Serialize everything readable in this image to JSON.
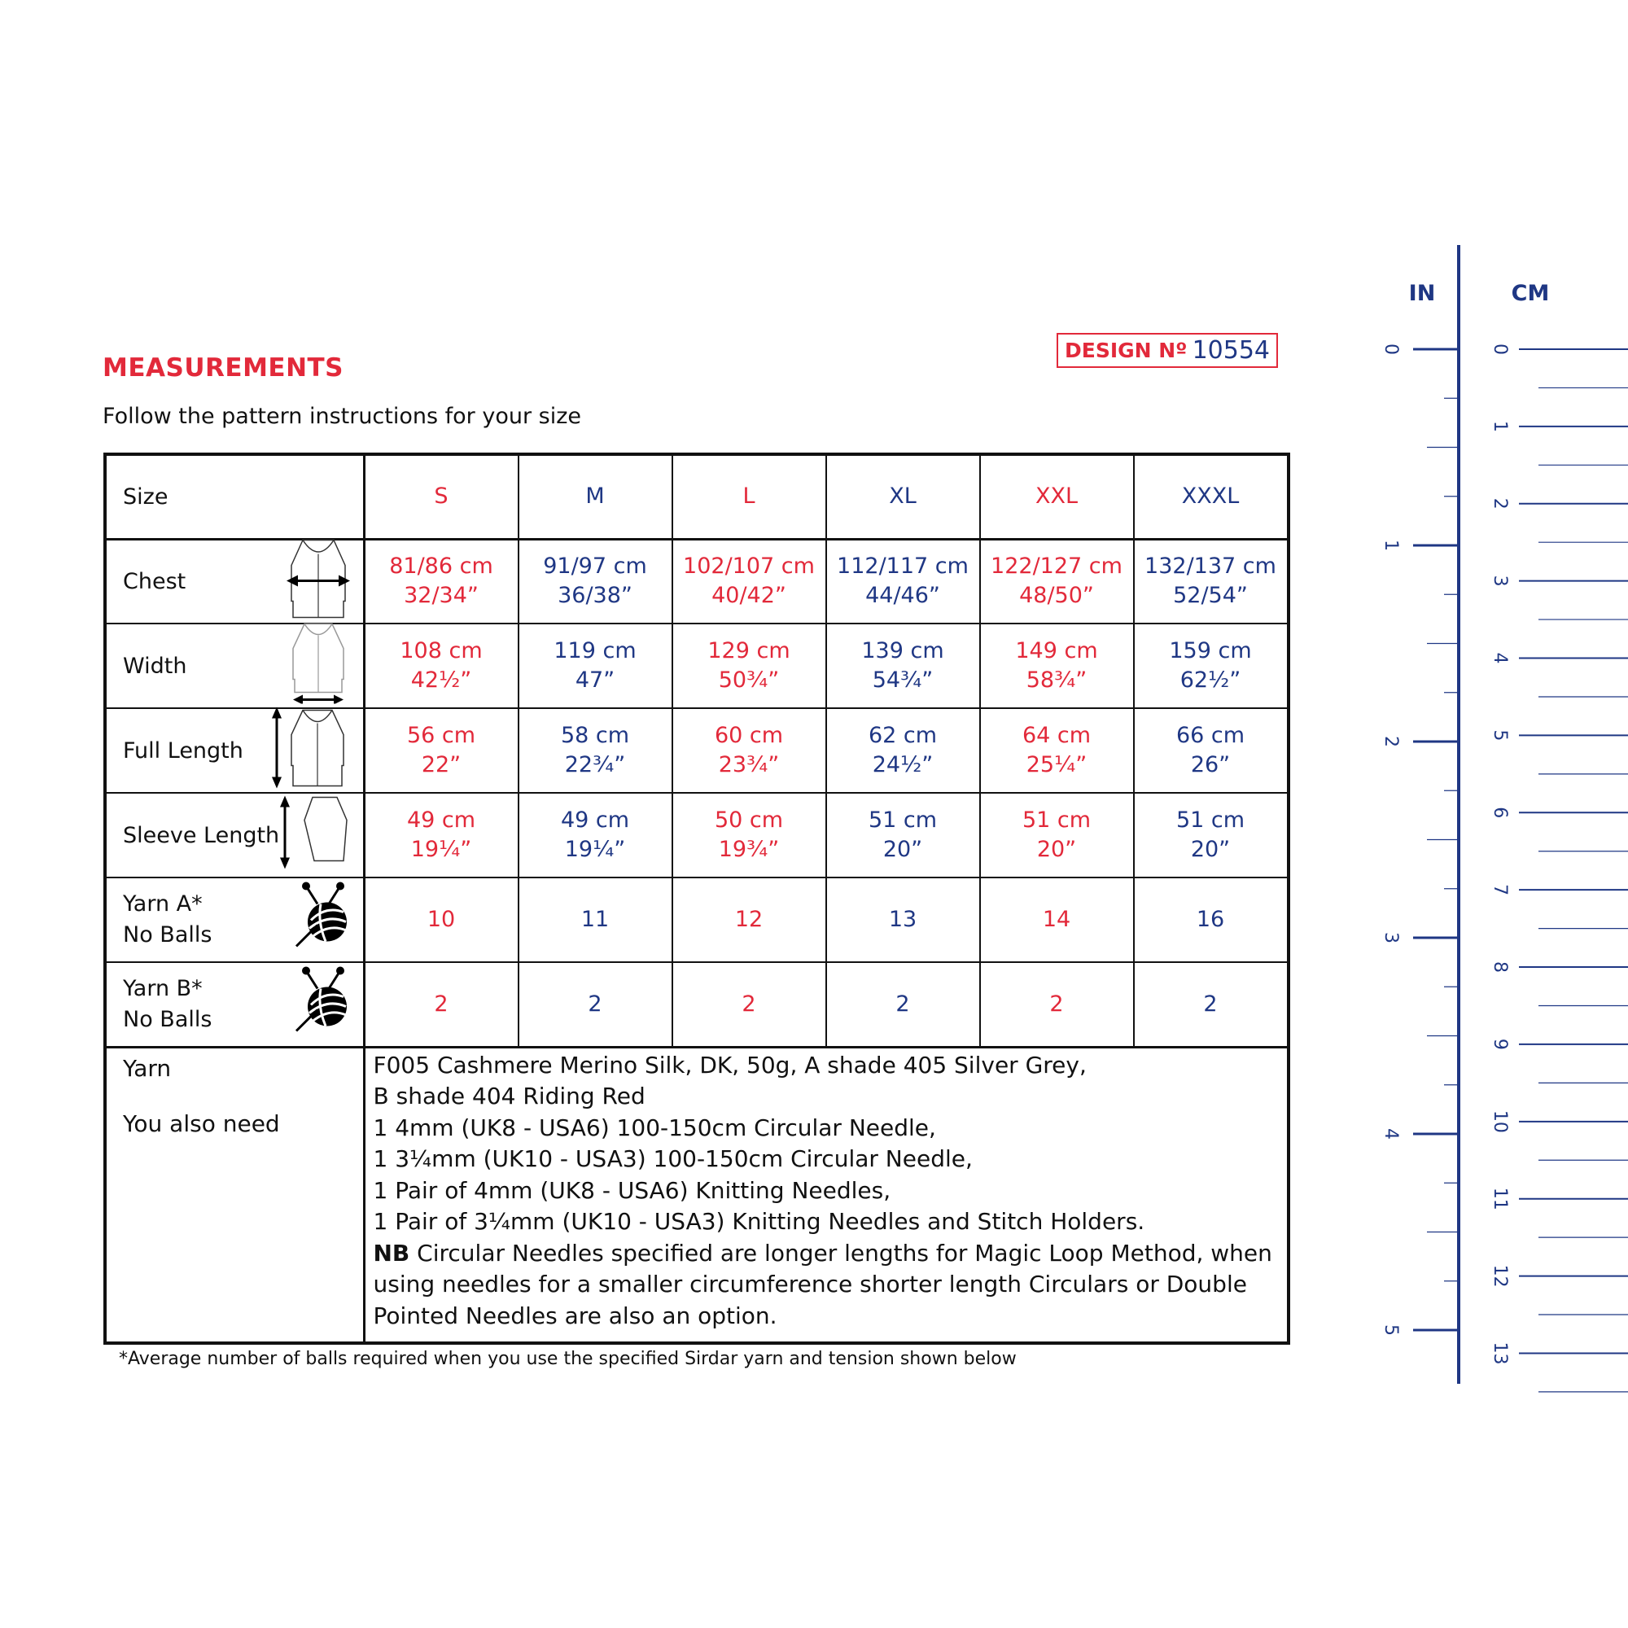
{
  "title": "MEASUREMENTS",
  "subtitle": "Follow the pattern instructions for your size",
  "design": {
    "label": "DESIGN Nº",
    "number": "10554"
  },
  "colors": {
    "red": "#e2293a",
    "blue": "#1f3784"
  },
  "table": {
    "size_label": "Size",
    "sizes": [
      "S",
      "M",
      "L",
      "XL",
      "XXL",
      "XXXL"
    ],
    "rows": [
      {
        "label": "Chest",
        "icon": "cardigan-chest-icon",
        "cm": [
          "81/86 cm",
          "91/97 cm",
          "102/107 cm",
          "112/117 cm",
          "122/127 cm",
          "132/137 cm"
        ],
        "in": [
          "32/34”",
          "36/38”",
          "40/42”",
          "44/46”",
          "48/50”",
          "52/54”"
        ]
      },
      {
        "label": "Width",
        "icon": "cardigan-width-icon",
        "cm": [
          "108 cm",
          "119 cm",
          "129 cm",
          "139 cm",
          "149 cm",
          "159 cm"
        ],
        "in": [
          "42½”",
          "47”",
          "50¾”",
          "54¾”",
          "58¾”",
          "62½”"
        ]
      },
      {
        "label": "Full Length",
        "icon": "cardigan-length-icon",
        "cm": [
          "56 cm",
          "58 cm",
          "60 cm",
          "62 cm",
          "64 cm",
          "66 cm"
        ],
        "in": [
          "22”",
          "22¾”",
          "23¾”",
          "24½”",
          "25¼”",
          "26”"
        ]
      },
      {
        "label": "Sleeve Length",
        "icon": "sleeve-length-icon",
        "cm": [
          "49 cm",
          "49 cm",
          "50 cm",
          "51 cm",
          "51 cm",
          "51 cm"
        ],
        "in": [
          "19¼”",
          "19¼”",
          "19¾”",
          "20”",
          "20”",
          "20”"
        ]
      }
    ],
    "yarn_rows": [
      {
        "label1": "Yarn A*",
        "label2": "No Balls",
        "icon": "yarn-ball-icon",
        "values": [
          "10",
          "11",
          "12",
          "13",
          "14",
          "16"
        ]
      },
      {
        "label1": "Yarn B*",
        "label2": "No Balls",
        "icon": "yarn-ball-icon",
        "values": [
          "2",
          "2",
          "2",
          "2",
          "2",
          "2"
        ]
      }
    ],
    "info": {
      "yarn_label": "Yarn",
      "need_label": "You also need",
      "lines": [
        "F005 Cashmere Merino Silk, DK, 50g, A shade 405 Silver Grey,",
        "B shade 404 Riding Red",
        "1 4mm (UK8 - USA6) 100-150cm Circular Needle,",
        "1 3¼mm (UK10 - USA3) 100-150cm Circular Needle,",
        "1 Pair of 4mm (UK8 - USA6) Knitting Needles,",
        "1 Pair of 3¼mm (UK10 - USA3) Knitting Needles and Stitch Holders."
      ],
      "nb_bold": "NB",
      "nb_text": " Circular Needles specified are longer lengths for Magic Loop Method, when using needles for a smaller circumference shorter length Circulars or Double Pointed Needles are also an option."
    }
  },
  "footnote": "*Average number of balls required when you use the specified Sirdar yarn and tension shown below",
  "ruler": {
    "in_label": "IN",
    "cm_label": "CM",
    "inches": [
      "0",
      "1",
      "2",
      "3",
      "4",
      "5"
    ],
    "cm": [
      "0",
      "1",
      "2",
      "3",
      "4",
      "5",
      "6",
      "7",
      "8",
      "9",
      "10",
      "11",
      "12",
      "13"
    ]
  }
}
